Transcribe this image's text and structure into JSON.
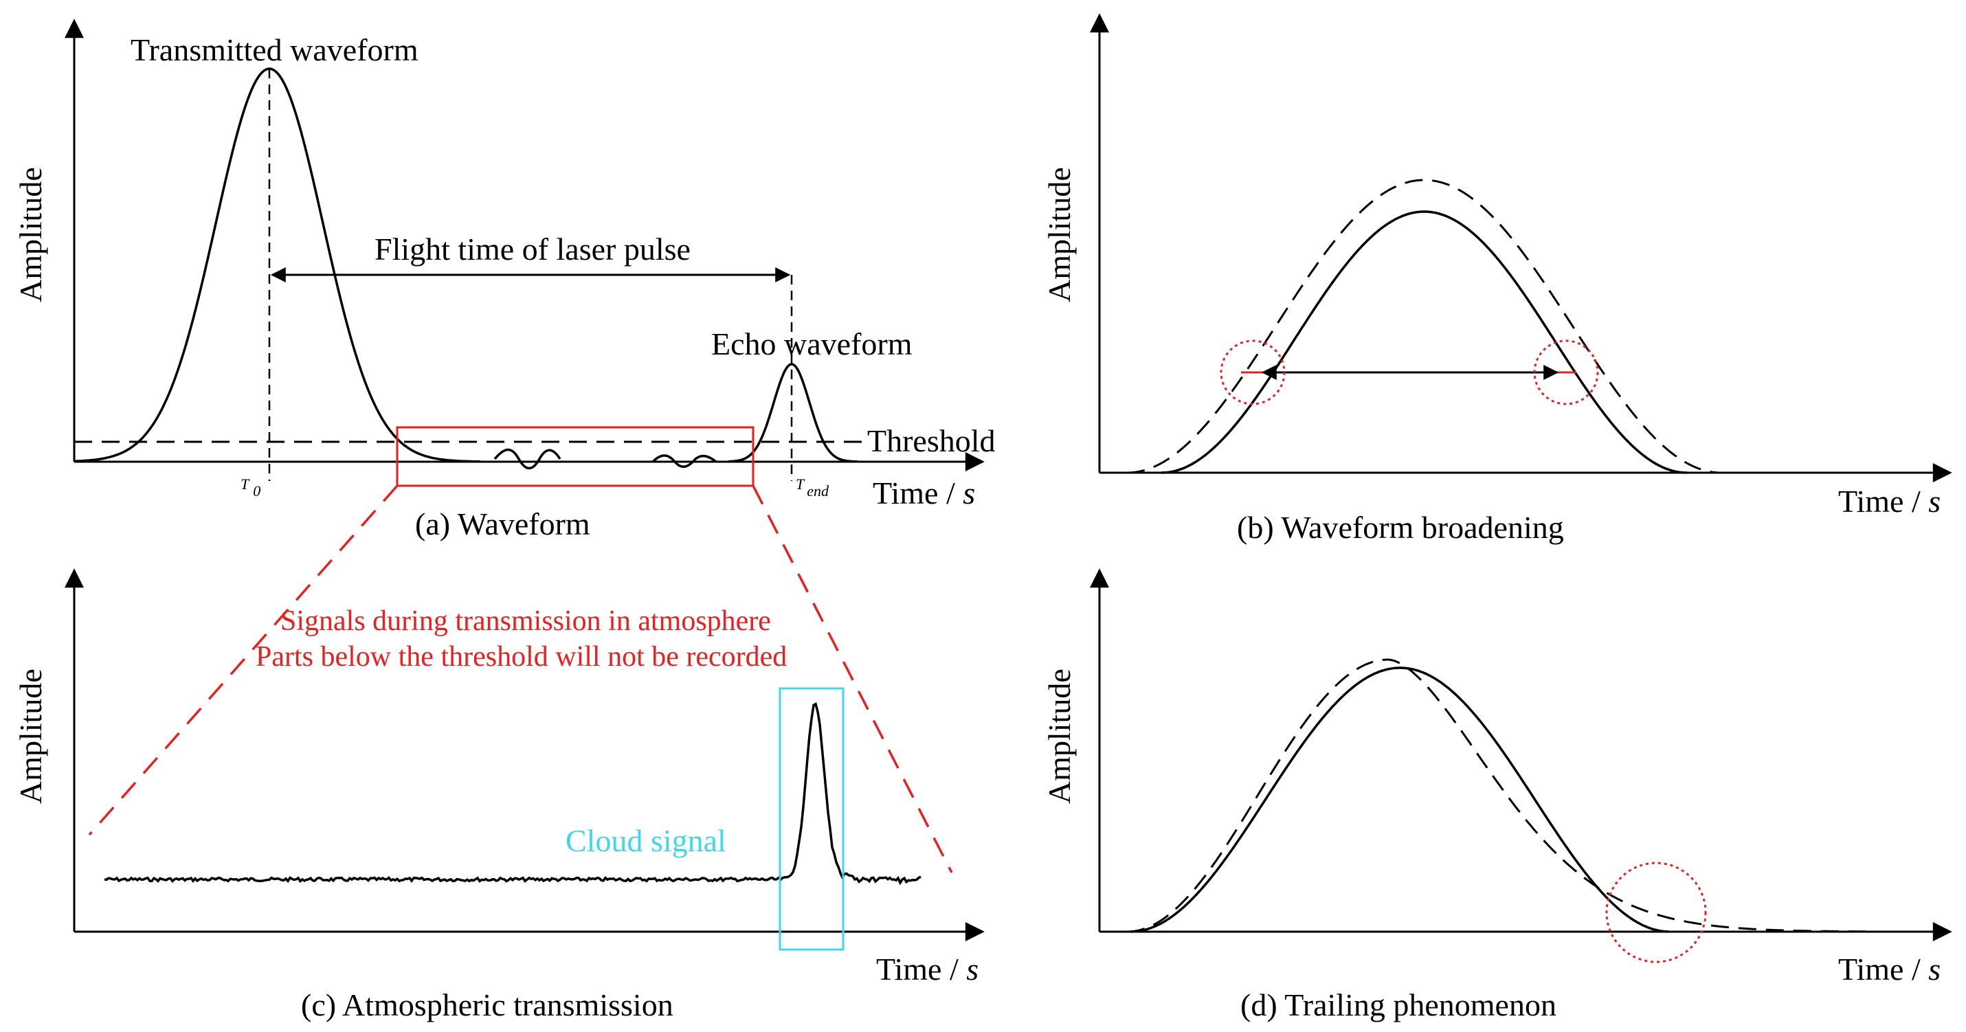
{
  "panel_a": {
    "caption": "(a) Waveform",
    "ylabel": "Amplitude",
    "xlabel": "Time",
    "xunit": "s",
    "transmitted_label": "Transmitted waveform",
    "echo_label": "Echo waveform",
    "threshold_label": "Threshold",
    "flight_label": "Flight time of laser pulse",
    "t0_label": "T",
    "t0_sub": "0",
    "tend_label": "T",
    "tend_sub": "end"
  },
  "panel_b": {
    "caption": "(b) Waveform broadening",
    "ylabel": "Amplitude",
    "xlabel": "Time",
    "xunit": "s"
  },
  "panel_c": {
    "caption": "(c) Atmospheric transmission",
    "ylabel": "Amplitude",
    "xlabel": "Time",
    "xunit": "s",
    "note_line1": "Signals during transmission in atmosphere",
    "note_line2": "Parts below the threshold will not be recorded",
    "cloud_label": "Cloud signal"
  },
  "panel_d": {
    "caption": "(d) Trailing phenomenon",
    "ylabel": "Amplitude",
    "xlabel": "Time",
    "xunit": "s"
  },
  "colors": {
    "highlight_red": "#e82020",
    "cloud_cyan": "#3fd8ea",
    "line_black": "#000000"
  }
}
